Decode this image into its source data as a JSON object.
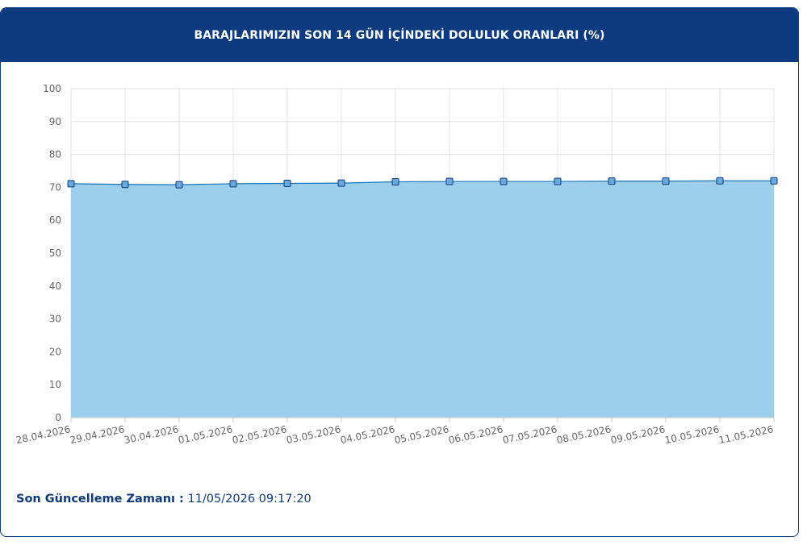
{
  "header": {
    "title": "BARAJLARIMIZIN SON 14 GÜN İÇİNDEKİ DOLULUK ORANLARI (%)"
  },
  "footer": {
    "label": "Son Güncelleme Zamanı :",
    "value": "11/05/2026 09:17:20"
  },
  "colors": {
    "header_bg": "#0e3a80",
    "area_fill": "#9ccfeb",
    "line": "#1f75b6",
    "marker_fill": "#6aa9dd",
    "marker_stroke": "#0e3a80"
  },
  "chart_data": {
    "type": "area",
    "title": "BARAJLARIMIZIN SON 14 GÜN İÇİNDEKİ DOLULUK ORANLARI (%)",
    "xlabel": "",
    "ylabel": "",
    "ylim": [
      0,
      100
    ],
    "yticks": [
      0,
      10,
      20,
      30,
      40,
      50,
      60,
      70,
      80,
      90,
      100
    ],
    "grid": true,
    "legend": "none",
    "categories": [
      "28.04.2026",
      "29.04.2026",
      "30.04.2026",
      "01.05.2026",
      "02.05.2026",
      "03.05.2026",
      "04.05.2026",
      "05.05.2026",
      "06.05.2026",
      "07.05.2026",
      "08.05.2026",
      "09.05.2026",
      "10.05.2026",
      "11.05.2026"
    ],
    "series": [
      {
        "values": [
          71.1,
          70.9,
          70.8,
          71.1,
          71.2,
          71.3,
          71.7,
          71.8,
          71.8,
          71.8,
          71.9,
          71.9,
          72.0,
          72.0
        ]
      }
    ]
  }
}
